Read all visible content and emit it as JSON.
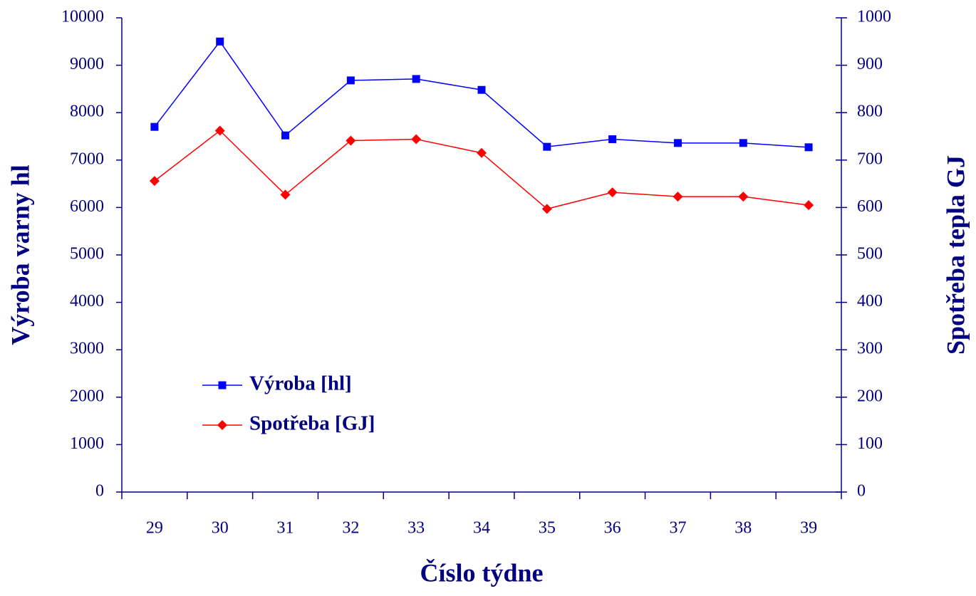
{
  "chart_data": {
    "type": "line",
    "x_label": "Číslo týdne",
    "y_label": "Výroba varny hl",
    "y2_label": "Spotřeba tepla GJ",
    "categories": [
      "29",
      "30",
      "31",
      "32",
      "33",
      "34",
      "35",
      "36",
      "37",
      "38",
      "39"
    ],
    "series": [
      {
        "name": "Výroba [hl]",
        "color": "#0000ff",
        "marker": "square",
        "values": [
          7700,
          9500,
          7520,
          8680,
          8710,
          8480,
          7280,
          7440,
          7360,
          7360,
          7270
        ]
      },
      {
        "name": "Spotřeba [GJ]",
        "color": "#ff0000",
        "marker": "diamond",
        "axis": "y2",
        "values": [
          656,
          762,
          627,
          741,
          744,
          715,
          597,
          632,
          623,
          623,
          605
        ]
      }
    ],
    "ylim": [
      0,
      10000
    ],
    "yticks": [
      0,
      1000,
      2000,
      3000,
      4000,
      5000,
      6000,
      7000,
      8000,
      9000,
      10000
    ],
    "y2lim": [
      0,
      1000
    ],
    "y2ticks": [
      0,
      100,
      200,
      300,
      400,
      500,
      600,
      700,
      800,
      900,
      1000
    ],
    "axis_color": "#000080"
  }
}
